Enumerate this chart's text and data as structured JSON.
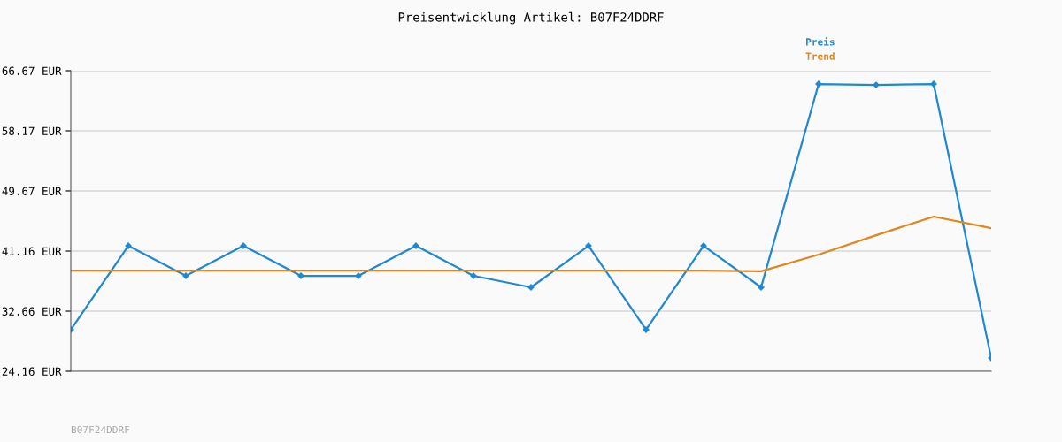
{
  "chart_data": {
    "type": "line",
    "title": "Preisentwicklung Artikel: B07F24DDRF",
    "categories": [
      null,
      null,
      null,
      null,
      null,
      null,
      null,
      null,
      null,
      null,
      null,
      null,
      null,
      null,
      null,
      null,
      null
    ],
    "series": [
      {
        "name": "Preis",
        "color": "#2088d0",
        "marker": "diamond",
        "values": [
          30.04,
          41.91,
          37.66,
          41.91,
          37.66,
          37.66,
          41.91,
          37.66,
          36.04,
          41.91,
          30.04,
          41.91,
          36.04,
          64.79,
          64.66,
          64.79,
          26.03
        ]
      },
      {
        "name": "Trend",
        "color": "#e0861e",
        "marker": "none",
        "values": [
          38.41,
          38.41,
          38.41,
          38.41,
          38.41,
          38.41,
          38.41,
          38.41,
          38.41,
          38.41,
          38.41,
          38.41,
          38.3,
          40.66,
          43.4,
          46.04,
          44.41
        ]
      }
    ],
    "ylim": [
      24.16,
      66.67
    ],
    "yticks": [
      {
        "value": 24.16,
        "label": "24.16 EUR"
      },
      {
        "value": 32.66,
        "label": "32.66 EUR"
      },
      {
        "value": 41.16,
        "label": "41.16 EUR"
      },
      {
        "value": 49.67,
        "label": "49.67 EUR"
      },
      {
        "value": 58.17,
        "label": "58.17 EUR"
      },
      {
        "value": 66.67,
        "label": "66.67 EUR"
      }
    ],
    "grid": "y",
    "legend": "top right",
    "annotations": [
      "B07F24DDRF"
    ]
  }
}
